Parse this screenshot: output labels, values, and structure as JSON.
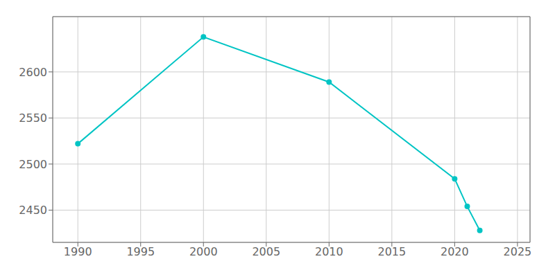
{
  "chart_data": {
    "type": "line",
    "x": [
      1990,
      2000,
      2010,
      2020,
      2021,
      2022
    ],
    "values": [
      2522,
      2638,
      2589,
      2484,
      2454,
      2428
    ],
    "color": "#00C4C4",
    "marker": "circle",
    "xlim": [
      1988,
      2026
    ],
    "ylim": [
      2415,
      2660
    ],
    "xticks": [
      1990,
      1995,
      2000,
      2005,
      2010,
      2015,
      2020,
      2025
    ],
    "yticks": [
      2450,
      2500,
      2550,
      2600
    ],
    "grid": true
  }
}
